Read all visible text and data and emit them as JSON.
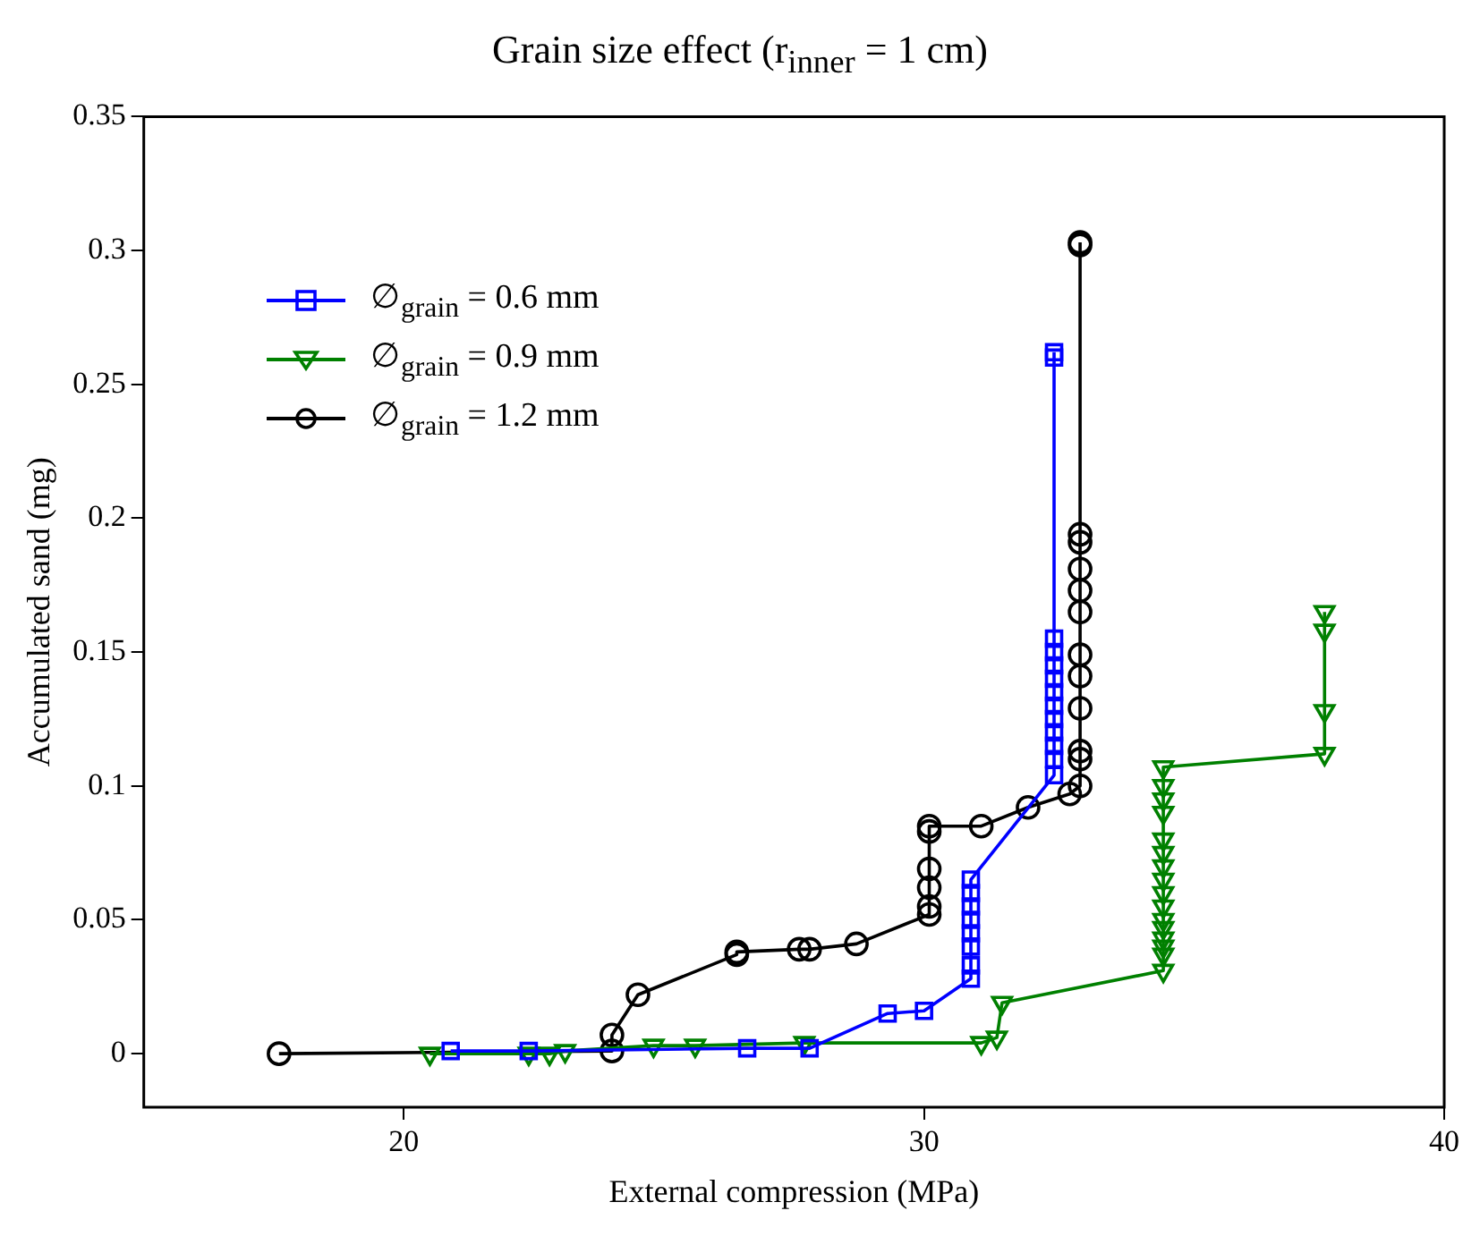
{
  "chart_data": {
    "type": "line",
    "title": "Grain size effect (r$_{inner}$ = 1 cm)",
    "xlabel": "External compression (MPa)",
    "ylabel": "Accumulated sand (mg)",
    "xlim": [
      15,
      40
    ],
    "xticks": [
      20,
      30,
      40
    ],
    "ylim": [
      -0.02,
      0.35
    ],
    "yticks": [
      0,
      0.05,
      0.1,
      0.15,
      0.2,
      0.25,
      0.3,
      0.35
    ],
    "grid": false,
    "legend": "top left",
    "line_style": "solid",
    "series": [
      {
        "name": "∅$_{grain}$ = 0.6 mm",
        "color": "#0000ff",
        "marker": "square",
        "x": [
          20.9,
          22.4,
          26.6,
          27.8,
          29.3,
          30.0,
          30.9,
          30.9,
          30.9,
          30.9,
          30.9,
          30.9,
          30.9,
          30.9,
          32.5,
          32.5,
          32.5,
          32.5,
          32.5,
          32.5,
          32.5,
          32.5,
          32.5,
          32.5,
          32.5,
          32.5,
          32.5
        ],
        "values": [
          0.001,
          0.001,
          0.002,
          0.002,
          0.015,
          0.016,
          0.028,
          0.033,
          0.04,
          0.045,
          0.05,
          0.055,
          0.06,
          0.065,
          0.104,
          0.11,
          0.115,
          0.12,
          0.125,
          0.13,
          0.135,
          0.14,
          0.145,
          0.15,
          0.155,
          0.26,
          0.262
        ]
      },
      {
        "name": "∅$_{grain}$ = 0.9 mm",
        "color": "#008000",
        "marker": "triangle",
        "x": [
          20.5,
          22.4,
          22.8,
          23.1,
          24.8,
          25.6,
          27.7,
          31.1,
          31.4,
          31.5,
          34.6,
          34.6,
          34.6,
          34.6,
          34.6,
          34.6,
          34.6,
          34.6,
          34.6,
          34.6,
          34.6,
          34.6,
          34.6,
          34.6,
          34.6,
          34.6,
          37.7,
          37.7,
          37.7,
          37.7
        ],
        "values": [
          0,
          0,
          0,
          0.001,
          0.003,
          0.003,
          0.004,
          0.004,
          0.006,
          0.019,
          0.031,
          0.037,
          0.04,
          0.043,
          0.047,
          0.05,
          0.055,
          0.06,
          0.065,
          0.07,
          0.075,
          0.08,
          0.09,
          0.095,
          0.1,
          0.107,
          0.112,
          0.128,
          0.158,
          0.165
        ]
      },
      {
        "name": "∅$_{grain}$ = 1.2 mm",
        "color": "#000000",
        "marker": "circle",
        "x": [
          17.6,
          24.0,
          24.0,
          24.5,
          26.4,
          26.4,
          27.6,
          27.8,
          28.7,
          30.1,
          30.1,
          30.1,
          30.1,
          30.1,
          30.1,
          31.1,
          32.0,
          32.8,
          33.0,
          33.0,
          33.0,
          33.0,
          33.0,
          33.0,
          33.0,
          33.0,
          33.0,
          33.0,
          33.0,
          33.0,
          33.0
        ],
        "values": [
          0,
          0.001,
          0.007,
          0.022,
          0.037,
          0.038,
          0.039,
          0.039,
          0.041,
          0.052,
          0.055,
          0.062,
          0.069,
          0.083,
          0.085,
          0.085,
          0.092,
          0.097,
          0.1,
          0.11,
          0.113,
          0.129,
          0.141,
          0.149,
          0.165,
          0.173,
          0.181,
          0.191,
          0.194,
          0.302,
          0.303
        ]
      }
    ]
  }
}
